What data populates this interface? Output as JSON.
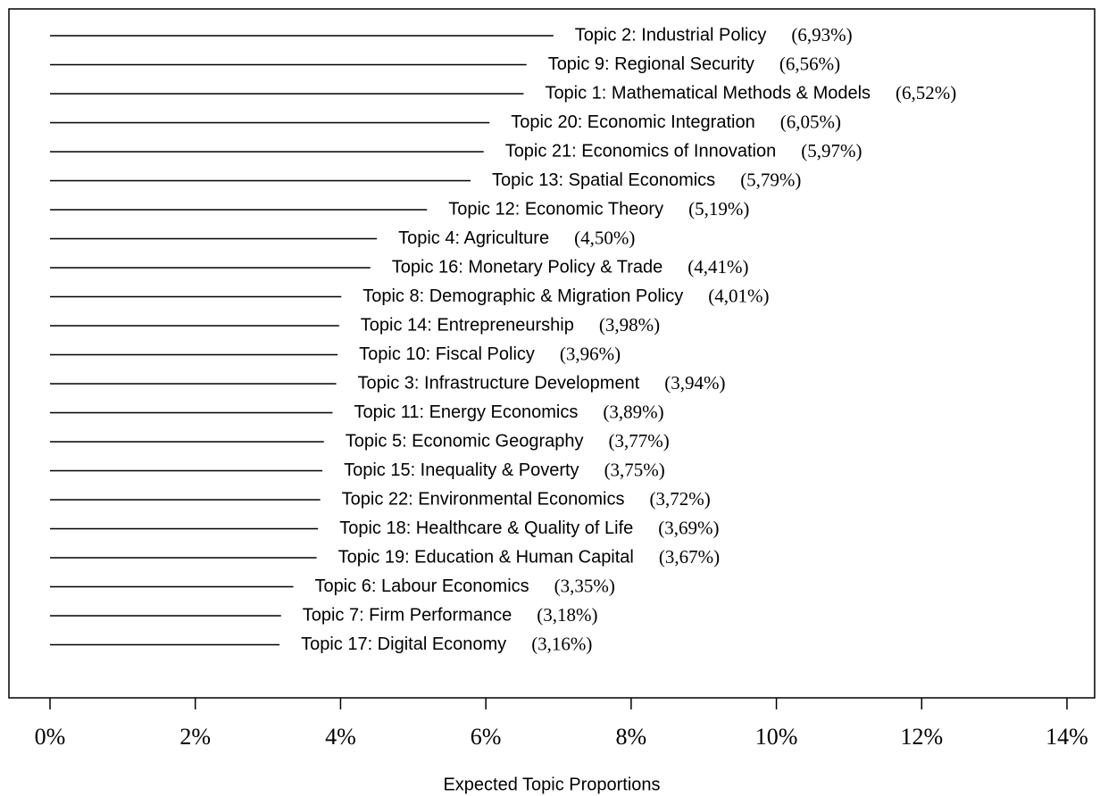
{
  "chart_data": {
    "type": "bar",
    "orientation": "horizontal",
    "color": "#000000",
    "xlabel": "Expected Topic Proportions",
    "categories": [
      "Topic 2: Industrial Policy",
      "Topic 9: Regional Security",
      "Topic 1: Mathematical Methods & Models",
      "Topic 20: Economic Integration",
      "Topic 21: Economics of Innovation",
      "Topic 13: Spatial Economics",
      "Topic 12: Economic Theory",
      "Topic 4: Agriculture",
      "Topic 16: Monetary Policy & Trade",
      "Topic 8: Demographic & Migration Policy",
      "Topic 14: Entrepreneurship",
      "Topic 10: Fiscal Policy",
      "Topic 3: Infrastructure Development",
      "Topic 11: Energy Economics",
      "Topic 5: Economic Geography",
      "Topic 15: Inequality & Poverty",
      "Topic 22: Environmental Economics",
      "Topic 18: Healthcare & Quality of Life",
      "Topic 19: Education & Human Capital",
      "Topic 6: Labour Economics",
      "Topic 7: Firm Performance",
      "Topic 17: Digital Economy"
    ],
    "values": [
      6.93,
      6.56,
      6.52,
      6.05,
      5.97,
      5.79,
      5.19,
      4.5,
      4.41,
      4.01,
      3.98,
      3.96,
      3.94,
      3.89,
      3.77,
      3.75,
      3.72,
      3.69,
      3.67,
      3.35,
      3.18,
      3.16
    ],
    "value_labels": [
      "(6,93%)",
      "(6,56%)",
      "(6,52%)",
      "(6,05%)",
      "(5,97%)",
      "(5,79%)",
      "(5,19%)",
      "(4,50%)",
      "(4,41%)",
      "(4,01%)",
      "(3,98%)",
      "(3,96%)",
      "(3,94%)",
      "(3,89%)",
      "(3,77%)",
      "(3,75%)",
      "(3,72%)",
      "(3,69%)",
      "(3,67%)",
      "(3,35%)",
      "(3,18%)",
      "(3,16%)"
    ],
    "xlim": [
      0,
      14
    ],
    "xticks": [
      {
        "value": 0,
        "label": "0%"
      },
      {
        "value": 2,
        "label": "2%"
      },
      {
        "value": 4,
        "label": "4%"
      },
      {
        "value": 6,
        "label": "6%"
      },
      {
        "value": 8,
        "label": "8%"
      },
      {
        "value": 10,
        "label": "10%"
      },
      {
        "value": 12,
        "label": "12%"
      },
      {
        "value": 14,
        "label": "14%"
      }
    ]
  }
}
